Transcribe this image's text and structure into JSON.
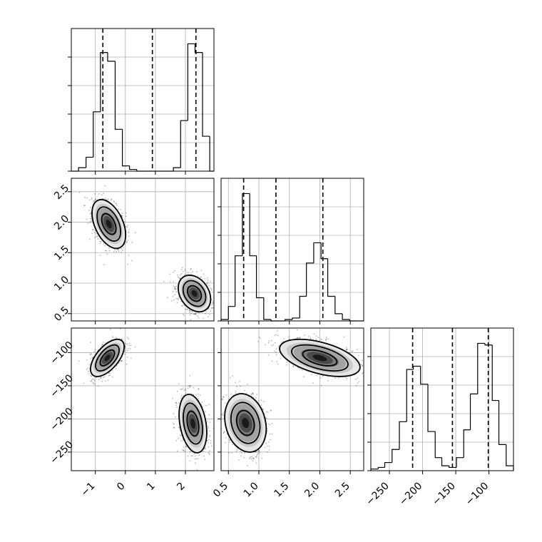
{
  "chart_data": {
    "type": "corner",
    "grid": true,
    "parameters": [
      {
        "index": 0,
        "xlim": [
          -1.8,
          2.95
        ],
        "ticks": [
          -1,
          0,
          1,
          2
        ],
        "tick_labels": [
          "−1",
          "0",
          "1",
          "2"
        ],
        "quantiles": [
          -0.75,
          0.9,
          2.35
        ]
      },
      {
        "index": 1,
        "xlim": [
          0.38,
          2.72
        ],
        "ticks": [
          0.5,
          1.0,
          1.5,
          2.0,
          2.5
        ],
        "tick_labels": [
          "0.5",
          "1.0",
          "1.5",
          "2.0",
          "2.5"
        ],
        "quantiles": [
          0.75,
          1.28,
          2.05
        ]
      },
      {
        "index": 2,
        "xlim": [
          -278,
          -63
        ],
        "ticks": [
          -250,
          -200,
          -150,
          -100
        ],
        "tick_labels": [
          "−250",
          "−200",
          "−150",
          "−100"
        ],
        "quantiles": [
          -215,
          -155,
          -101
        ]
      }
    ],
    "histograms": [
      {
        "param": 0,
        "edges": [
          -1.8,
          -1.56,
          -1.31,
          -1.07,
          -0.83,
          -0.59,
          -0.34,
          -0.1,
          0.14,
          0.38,
          0.63,
          0.87,
          1.11,
          1.35,
          1.6,
          1.84,
          2.08,
          2.32,
          2.57,
          2.81,
          2.95
        ],
        "counts": [
          0,
          2,
          8,
          34,
          68,
          63,
          24,
          3,
          1,
          0,
          0,
          0,
          0,
          0,
          2,
          29,
          73,
          68,
          20,
          0
        ]
      },
      {
        "param": 1,
        "edges": [
          0.38,
          0.5,
          0.61,
          0.73,
          0.85,
          0.96,
          1.08,
          1.2,
          1.31,
          1.43,
          1.55,
          1.67,
          1.78,
          1.9,
          2.02,
          2.13,
          2.25,
          2.37,
          2.49,
          2.6,
          2.72
        ],
        "counts": [
          1,
          10,
          45,
          88,
          45,
          16,
          1,
          0,
          0,
          1,
          2,
          17,
          40,
          54,
          43,
          17,
          5,
          1,
          0,
          0
        ]
      },
      {
        "param": 2,
        "edges": [
          -278,
          -267,
          -257,
          -246,
          -235,
          -224,
          -214,
          -203,
          -192,
          -181,
          -171,
          -160,
          -149,
          -138,
          -128,
          -117,
          -106,
          -95,
          -85,
          -74,
          -63
        ],
        "counts": [
          1,
          2,
          5,
          13,
          30,
          62,
          64,
          53,
          24,
          8,
          3,
          2,
          8,
          25,
          47,
          78,
          77,
          43,
          16,
          3
        ]
      }
    ],
    "pairs": [
      {
        "x_param": 0,
        "y_param": 1,
        "modes": [
          {
            "cx": -0.55,
            "cy": 1.97,
            "sx": 0.28,
            "sy": 0.2,
            "rho": -0.45
          },
          {
            "cx": 2.3,
            "cy": 0.83,
            "sx": 0.27,
            "sy": 0.15,
            "rho": -0.3
          }
        ]
      },
      {
        "x_param": 0,
        "y_param": 2,
        "modes": [
          {
            "cx": -0.6,
            "cy": -108,
            "sx": 0.28,
            "sy": 14,
            "rho": 0.6
          },
          {
            "cx": 2.25,
            "cy": -207,
            "sx": 0.23,
            "sy": 22,
            "rho": -0.3
          }
        ]
      },
      {
        "x_param": 1,
        "y_param": 2,
        "modes": [
          {
            "cx": 0.78,
            "cy": -206,
            "sx": 0.17,
            "sy": 22,
            "rho": -0.2
          },
          {
            "cx": 2.0,
            "cy": -108,
            "sx": 0.33,
            "sy": 14,
            "rho": -0.5
          }
        ]
      }
    ]
  }
}
